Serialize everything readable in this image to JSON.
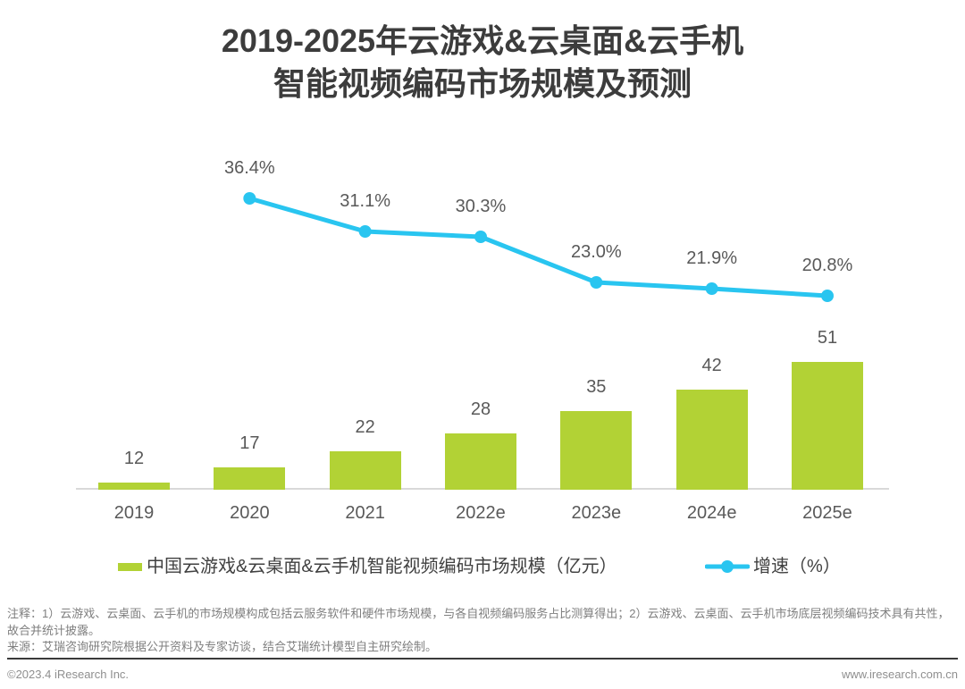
{
  "title": {
    "line1": "2019-2025年云游戏&云桌面&云手机",
    "line2": "智能视频编码市场规模及预测"
  },
  "chart_data": {
    "type": "bar",
    "subtype": "combo-bar-line",
    "title": "2019-2025年云游戏&云桌面&云手机智能视频编码市场规模及预测",
    "categories": [
      "2019",
      "2020",
      "2021",
      "2022e",
      "2023e",
      "2024e",
      "2025e"
    ],
    "series": [
      {
        "name": "中国云游戏&云桌面&云手机智能视频编码市场规模（亿元）",
        "type": "bar",
        "values": [
          12,
          17,
          22,
          28,
          35,
          42,
          51
        ],
        "color": "#b2d235"
      },
      {
        "name": "增速（%）",
        "type": "line",
        "values": [
          null,
          36.4,
          31.1,
          30.3,
          23.0,
          21.9,
          20.8
        ],
        "color": "#29c5f0"
      }
    ],
    "xlabel": "",
    "ylabel": "",
    "grid": false,
    "legend_position": "bottom",
    "data_labels": true
  },
  "legend": {
    "bar_label": "中国云游戏&云桌面&云手机智能视频编码市场规模（亿元）",
    "line_label": "增速（%）"
  },
  "footnotes": {
    "note": "注释：1）云游戏、云桌面、云手机的市场规模构成包括云服务软件和硬件市场规模，与各自视频编码服务占比测算得出；2）云游戏、云桌面、云手机市场底层视频编码技术具有共性，故合并统计披露。",
    "source": "来源：艾瑞咨询研究院根据公开资料及专家访谈，结合艾瑞统计模型自主研究绘制。"
  },
  "footer": {
    "left": "©2023.4 iResearch Inc.",
    "right": "www.iresearch.com.cn"
  },
  "colors": {
    "bar": "#b2d235",
    "line": "#29c5f0",
    "title_text": "#3c3c3c",
    "label_text": "#595959",
    "note_text": "#7f7f7f",
    "axis_line": "#d9d9d9"
  }
}
